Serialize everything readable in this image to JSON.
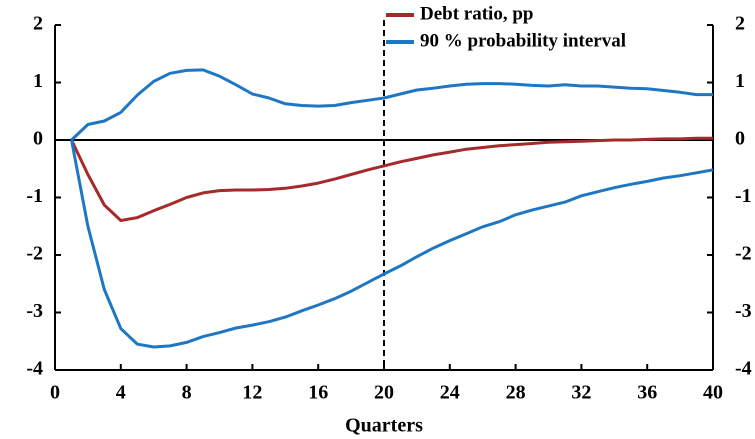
{
  "chart_data": {
    "type": "line",
    "x_label": "Quarters",
    "x": [
      1,
      2,
      3,
      4,
      5,
      6,
      7,
      8,
      9,
      10,
      11,
      12,
      13,
      14,
      15,
      16,
      17,
      18,
      19,
      20,
      21,
      22,
      23,
      24,
      25,
      26,
      27,
      28,
      29,
      30,
      31,
      32,
      33,
      34,
      35,
      36,
      37,
      38,
      39,
      40
    ],
    "series": [
      {
        "name": "Debt ratio, pp",
        "color": "#a52a2a",
        "values": [
          0,
          -0.6,
          -1.13,
          -1.4,
          -1.35,
          -1.23,
          -1.12,
          -1.0,
          -0.92,
          -0.88,
          -0.87,
          -0.87,
          -0.86,
          -0.84,
          -0.8,
          -0.75,
          -0.68,
          -0.6,
          -0.52,
          -0.45,
          -0.38,
          -0.32,
          -0.26,
          -0.21,
          -0.16,
          -0.13,
          -0.1,
          -0.08,
          -0.06,
          -0.04,
          -0.03,
          -0.02,
          -0.01,
          0,
          0,
          0.01,
          0.02,
          0.02,
          0.03,
          0.03
        ]
      },
      {
        "name": "90 % probability interval",
        "color": "#1f77c4",
        "upper": [
          0,
          0.27,
          0.33,
          0.48,
          0.78,
          1.02,
          1.16,
          1.21,
          1.22,
          1.11,
          0.96,
          0.8,
          0.73,
          0.63,
          0.6,
          0.59,
          0.6,
          0.65,
          0.69,
          0.73,
          0.8,
          0.87,
          0.9,
          0.94,
          0.97,
          0.98,
          0.98,
          0.97,
          0.95,
          0.94,
          0.96,
          0.94,
          0.94,
          0.92,
          0.9,
          0.89,
          0.86,
          0.83,
          0.79,
          0.79
        ],
        "lower": [
          0,
          -1.5,
          -2.6,
          -3.28,
          -3.55,
          -3.6,
          -3.58,
          -3.52,
          -3.42,
          -3.35,
          -3.27,
          -3.22,
          -3.16,
          -3.08,
          -2.97,
          -2.87,
          -2.76,
          -2.63,
          -2.48,
          -2.33,
          -2.19,
          -2.03,
          -1.88,
          -1.75,
          -1.63,
          -1.51,
          -1.42,
          -1.3,
          -1.22,
          -1.15,
          -1.08,
          -0.97,
          -0.9,
          -0.83,
          -0.77,
          -0.72,
          -0.66,
          -0.62,
          -0.57,
          -0.52
        ]
      }
    ],
    "xlim": [
      0,
      40
    ],
    "xticks": [
      0,
      4,
      8,
      12,
      16,
      20,
      24,
      28,
      32,
      36,
      40
    ],
    "ylim": [
      -4,
      2
    ],
    "yticks": [
      -4,
      -3,
      -2,
      -1,
      0,
      1,
      2
    ],
    "y2lim": [
      -4,
      2
    ],
    "y2ticks": [
      -4,
      -3,
      -2,
      -1,
      0,
      1,
      2
    ],
    "vline": 20
  }
}
